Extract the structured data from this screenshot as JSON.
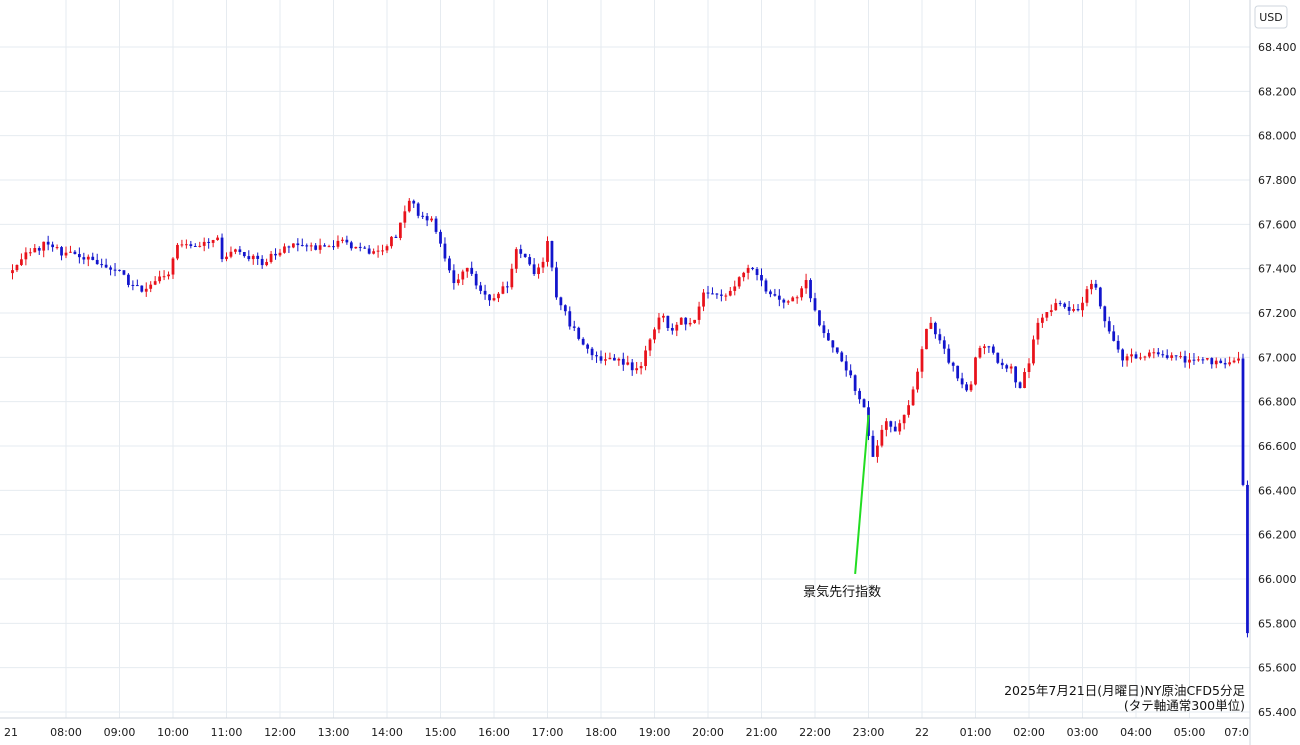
{
  "chart_data": {
    "type": "candlestick",
    "currency_label": "USD",
    "caption_lines": [
      "2025年7月21日(月曜日)NY原油CFD5分足",
      "(タテ軸通常300単位)"
    ],
    "ylim": [
      65.4,
      68.5
    ],
    "y_ticks": [
      65.4,
      65.6,
      65.8,
      66.0,
      66.2,
      66.4,
      66.6,
      66.8,
      67.0,
      67.2,
      67.4,
      67.6,
      67.8,
      68.0,
      68.2,
      68.4
    ],
    "y_tick_labels": [
      "65.400",
      "65.600",
      "65.800",
      "66.000",
      "66.200",
      "66.400",
      "66.600",
      "66.800",
      "67.000",
      "67.200",
      "67.400",
      "67.600",
      "67.800",
      "68.000",
      "68.200",
      "68.400"
    ],
    "x_tick_labels": [
      "21",
      "08:00",
      "09:00",
      "10:00",
      "11:00",
      "12:00",
      "13:00",
      "14:00",
      "15:00",
      "16:00",
      "17:00",
      "18:00",
      "19:00",
      "20:00",
      "21:00",
      "22:00",
      "23:00",
      "22",
      "01:00",
      "02:00",
      "03:00",
      "04:00",
      "05:00",
      "07:0"
    ],
    "x_tick_hours": [
      7,
      8,
      9,
      10,
      11,
      12,
      13,
      14,
      15,
      16,
      17,
      18,
      19,
      20,
      21,
      22,
      23,
      24,
      25,
      26,
      27,
      28,
      29,
      31
    ],
    "x_start_hour": 7,
    "bar_interval_hours": 0.0833333,
    "colors": {
      "up": "#e8121b",
      "down": "#1215cc",
      "annotation": "#22dd22",
      "grid": "#e6ebf0"
    },
    "annotation": {
      "label": "景気先行指数",
      "point_hour": 23.0,
      "point_value": 66.74,
      "label_hour": 22.9,
      "label_value": 66.05
    },
    "anchors": [
      [
        7.0,
        67.38
      ],
      [
        7.25,
        67.45
      ],
      [
        7.5,
        67.48
      ],
      [
        7.75,
        67.52
      ],
      [
        8.0,
        67.47
      ],
      [
        8.25,
        67.48
      ],
      [
        8.5,
        67.44
      ],
      [
        8.75,
        67.41
      ],
      [
        9.0,
        67.4
      ],
      [
        9.25,
        67.34
      ],
      [
        9.5,
        67.31
      ],
      [
        9.75,
        67.34
      ],
      [
        10.0,
        67.38
      ],
      [
        10.15,
        67.5
      ],
      [
        10.5,
        67.5
      ],
      [
        10.75,
        67.51
      ],
      [
        10.9,
        67.56
      ],
      [
        11.0,
        67.45
      ],
      [
        11.25,
        67.48
      ],
      [
        11.5,
        67.45
      ],
      [
        11.75,
        67.43
      ],
      [
        12.0,
        67.47
      ],
      [
        12.25,
        67.5
      ],
      [
        12.5,
        67.52
      ],
      [
        12.75,
        67.5
      ],
      [
        13.0,
        67.51
      ],
      [
        13.25,
        67.52
      ],
      [
        13.5,
        67.5
      ],
      [
        13.75,
        67.48
      ],
      [
        14.0,
        67.49
      ],
      [
        14.25,
        67.55
      ],
      [
        14.5,
        67.72
      ],
      [
        14.7,
        67.63
      ],
      [
        14.95,
        67.62
      ],
      [
        15.15,
        67.45
      ],
      [
        15.35,
        67.34
      ],
      [
        15.6,
        67.4
      ],
      [
        15.85,
        67.28
      ],
      [
        16.0,
        67.26
      ],
      [
        16.2,
        67.31
      ],
      [
        16.35,
        67.33
      ],
      [
        16.5,
        67.48
      ],
      [
        16.7,
        67.45
      ],
      [
        16.85,
        67.38
      ],
      [
        17.0,
        67.44
      ],
      [
        17.1,
        67.53
      ],
      [
        17.25,
        67.28
      ],
      [
        17.5,
        67.15
      ],
      [
        17.75,
        67.06
      ],
      [
        18.0,
        67.0
      ],
      [
        18.25,
        66.99
      ],
      [
        18.5,
        66.98
      ],
      [
        18.7,
        66.94
      ],
      [
        18.85,
        66.97
      ],
      [
        19.0,
        67.08
      ],
      [
        19.2,
        67.2
      ],
      [
        19.4,
        67.12
      ],
      [
        19.6,
        67.18
      ],
      [
        19.8,
        67.13
      ],
      [
        20.0,
        67.28
      ],
      [
        20.25,
        67.28
      ],
      [
        20.5,
        67.3
      ],
      [
        20.7,
        67.38
      ],
      [
        20.9,
        67.4
      ],
      [
        21.1,
        67.33
      ],
      [
        21.35,
        67.26
      ],
      [
        21.6,
        67.25
      ],
      [
        21.75,
        67.27
      ],
      [
        21.9,
        67.36
      ],
      [
        22.05,
        67.22
      ],
      [
        22.2,
        67.12
      ],
      [
        22.4,
        67.06
      ],
      [
        22.6,
        66.98
      ],
      [
        22.8,
        66.88
      ],
      [
        23.0,
        66.76
      ],
      [
        23.15,
        66.55
      ],
      [
        23.3,
        66.64
      ],
      [
        23.45,
        66.72
      ],
      [
        23.6,
        66.66
      ],
      [
        23.8,
        66.75
      ],
      [
        24.0,
        66.93
      ],
      [
        24.2,
        67.17
      ],
      [
        24.4,
        67.08
      ],
      [
        24.6,
        66.98
      ],
      [
        24.8,
        66.9
      ],
      [
        24.95,
        66.82
      ],
      [
        25.1,
        67.02
      ],
      [
        25.3,
        67.05
      ],
      [
        25.5,
        66.98
      ],
      [
        25.75,
        66.95
      ],
      [
        25.9,
        66.86
      ],
      [
        26.05,
        66.95
      ],
      [
        26.25,
        67.17
      ],
      [
        26.45,
        67.2
      ],
      [
        26.65,
        67.25
      ],
      [
        26.85,
        67.22
      ],
      [
        27.0,
        67.2
      ],
      [
        27.15,
        67.3
      ],
      [
        27.3,
        67.34
      ],
      [
        27.45,
        67.2
      ],
      [
        27.65,
        67.08
      ],
      [
        27.85,
        66.99
      ],
      [
        28.0,
        67.0
      ],
      [
        28.25,
        67.0
      ],
      [
        28.5,
        67.02
      ],
      [
        28.75,
        67.0
      ],
      [
        29.0,
        66.99
      ],
      [
        29.25,
        66.99
      ],
      [
        29.5,
        66.98
      ],
      [
        29.8,
        66.97
      ],
      [
        29.95,
        67.0
      ],
      [
        30.05,
        67.0
      ],
      [
        30.12,
        65.77
      ]
    ]
  }
}
